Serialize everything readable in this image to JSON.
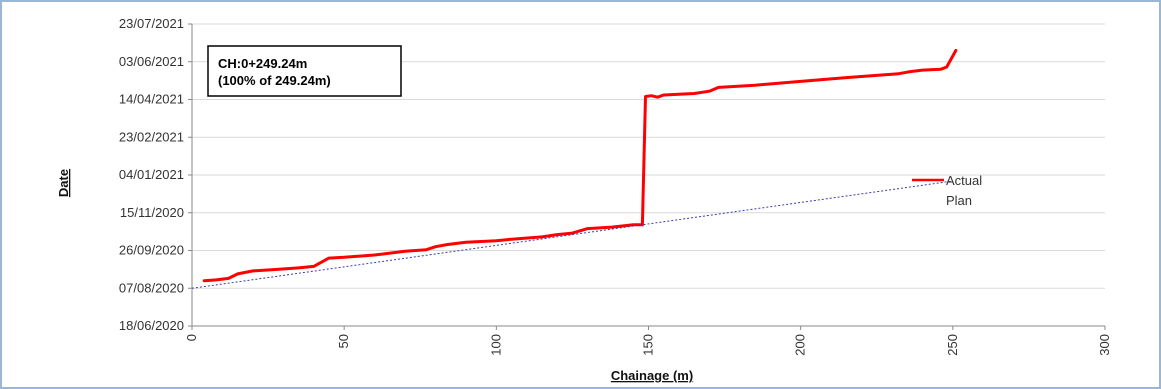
{
  "chart_data": {
    "type": "line",
    "title": "",
    "xlabel": "Chainage (m)",
    "ylabel": "Date",
    "xlim": [
      0,
      300
    ],
    "ylim": [
      "2020-06-18",
      "2021-07-23"
    ],
    "x_ticks": [
      "0",
      "50",
      "100",
      "150",
      "200",
      "250",
      "300"
    ],
    "y_ticks": [
      {
        "date": "2020-06-18",
        "label": "18/06/2020"
      },
      {
        "date": "2020-08-07",
        "label": "07/08/2020"
      },
      {
        "date": "2020-09-26",
        "label": "26/09/2020"
      },
      {
        "date": "2020-11-15",
        "label": "15/11/2020"
      },
      {
        "date": "2021-01-04",
        "label": "04/01/2021"
      },
      {
        "date": "2021-02-23",
        "label": "23/02/2021"
      },
      {
        "date": "2021-04-14",
        "label": "14/04/2021"
      },
      {
        "date": "2021-06-03",
        "label": "03/06/2021"
      },
      {
        "date": "2021-07-23",
        "label": "23/07/2021"
      }
    ],
    "grid": "horizontal",
    "legend_position": "right",
    "annotation": {
      "line1": "CH:0+249.24m",
      "line2": "(100% of 249.24m)"
    },
    "series": [
      {
        "name": "Actual",
        "color": "#ff0000",
        "points": [
          [
            4,
            "2020-08-17"
          ],
          [
            8,
            "2020-08-18"
          ],
          [
            12,
            "2020-08-20"
          ],
          [
            15,
            "2020-08-26"
          ],
          [
            20,
            "2020-08-30"
          ],
          [
            28,
            "2020-09-01"
          ],
          [
            35,
            "2020-09-03"
          ],
          [
            40,
            "2020-09-05"
          ],
          [
            45,
            "2020-09-16"
          ],
          [
            50,
            "2020-09-17"
          ],
          [
            60,
            "2020-09-20"
          ],
          [
            70,
            "2020-09-25"
          ],
          [
            77,
            "2020-09-27"
          ],
          [
            80,
            "2020-10-01"
          ],
          [
            84,
            "2020-10-04"
          ],
          [
            90,
            "2020-10-07"
          ],
          [
            100,
            "2020-10-09"
          ],
          [
            105,
            "2020-10-11"
          ],
          [
            115,
            "2020-10-14"
          ],
          [
            120,
            "2020-10-17"
          ],
          [
            125,
            "2020-10-19"
          ],
          [
            130,
            "2020-10-25"
          ],
          [
            138,
            "2020-10-27"
          ],
          [
            145,
            "2020-10-30"
          ],
          [
            148,
            "2020-10-30"
          ],
          [
            149,
            "2021-04-18"
          ],
          [
            151,
            "2021-04-19"
          ],
          [
            153,
            "2021-04-17"
          ],
          [
            155,
            "2021-04-20"
          ],
          [
            165,
            "2021-04-22"
          ],
          [
            170,
            "2021-04-25"
          ],
          [
            173,
            "2021-04-30"
          ],
          [
            185,
            "2021-05-03"
          ],
          [
            200,
            "2021-05-08"
          ],
          [
            215,
            "2021-05-13"
          ],
          [
            232,
            "2021-05-18"
          ],
          [
            236,
            "2021-05-21"
          ],
          [
            240,
            "2021-05-23"
          ],
          [
            246,
            "2021-05-24"
          ],
          [
            248,
            "2021-05-27"
          ],
          [
            251,
            "2021-06-18"
          ]
        ]
      },
      {
        "name": "Plan",
        "color": "#3b3bb5",
        "points": [
          [
            0,
            "2020-08-07"
          ],
          [
            250,
            "2020-12-27"
          ]
        ]
      }
    ]
  }
}
